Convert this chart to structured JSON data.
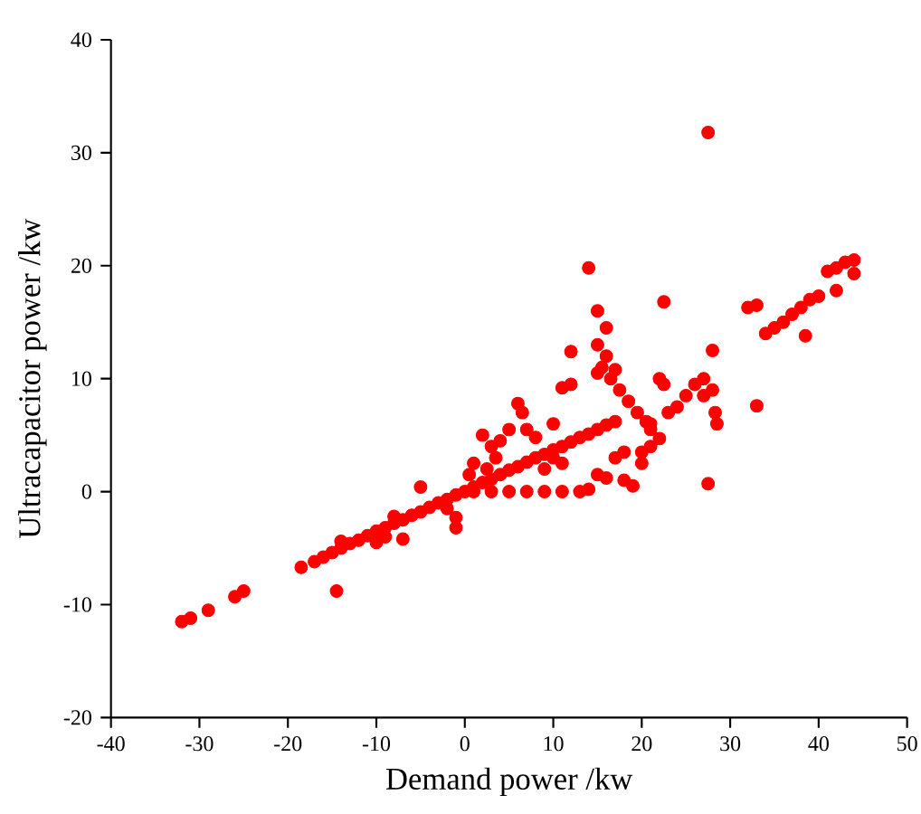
{
  "chart_data": {
    "type": "scatter",
    "xlabel": "Demand power /kw",
    "ylabel": "Ultracapacitor power /kw",
    "xlim": [
      -40,
      50
    ],
    "xticks": [
      -40,
      -30,
      -20,
      -10,
      0,
      10,
      20,
      30,
      40,
      50
    ],
    "ylim": [
      -20,
      40
    ],
    "yticks": [
      -20,
      -10,
      0,
      10,
      20,
      30,
      40
    ],
    "grid": false,
    "marker": "circle",
    "series": [
      {
        "color": "#ff0000",
        "x": [
          -32,
          -31,
          -29,
          -26,
          -25,
          -14.5,
          -18.5,
          -17,
          -16,
          -15,
          -14,
          -13,
          -12,
          -11,
          -10,
          -9,
          -8,
          -7,
          -6,
          -5,
          -4,
          -3,
          -2,
          -1,
          0,
          -14,
          -10,
          -9,
          -7,
          -5,
          -1,
          -1,
          -2,
          -8,
          1,
          2,
          3,
          4,
          5,
          6,
          7,
          8,
          9,
          10,
          11,
          12,
          13,
          14,
          15,
          16,
          17,
          1,
          3,
          5,
          7,
          9,
          11,
          13,
          14,
          1,
          2,
          3,
          4,
          5,
          6,
          6.5,
          7,
          8,
          3.5,
          2.5,
          0.5,
          9,
          10,
          11,
          11,
          12,
          10,
          12,
          14,
          15,
          15,
          16,
          16,
          17,
          15,
          15.5,
          16.5,
          17.5,
          18.5,
          19.5,
          20.5,
          21,
          15,
          16,
          17,
          18,
          18,
          19,
          20,
          20,
          21,
          22,
          21,
          22,
          22.5,
          22.5,
          23,
          24,
          25,
          26,
          27,
          27.5,
          27.5,
          28,
          28,
          28.3,
          28.5,
          27,
          33,
          32,
          33,
          34,
          35,
          36,
          37,
          38,
          39,
          40,
          38.5,
          41,
          42,
          43,
          44,
          42,
          44
        ],
        "values": [
          -11.5,
          -11.2,
          -10.5,
          -9.3,
          -8.8,
          -8.8,
          -6.7,
          -6.2,
          -5.8,
          -5.4,
          -5.0,
          -4.6,
          -4.3,
          -3.9,
          -3.5,
          -3.2,
          -2.8,
          -2.5,
          -2.1,
          -1.8,
          -1.4,
          -1.0,
          -0.7,
          -0.3,
          0,
          -4.4,
          -4.5,
          -4.0,
          -4.2,
          0.4,
          -2.3,
          -3.2,
          -1.5,
          -2.2,
          0.4,
          0.8,
          1.1,
          1.5,
          1.9,
          2.2,
          2.6,
          3.0,
          3.3,
          3.7,
          4.0,
          4.4,
          4.8,
          5.1,
          5.5,
          5.9,
          6.2,
          0,
          0,
          0,
          0,
          0,
          0,
          0,
          0.2,
          2.5,
          5,
          4,
          4.5,
          5.5,
          7.8,
          7,
          5.5,
          4.8,
          3,
          2,
          1.5,
          2,
          3,
          2.5,
          9.2,
          9.5,
          6,
          12.4,
          19.8,
          16,
          13,
          12,
          14.5,
          10.8,
          10.5,
          11,
          10,
          9,
          8,
          7,
          6.2,
          5.5,
          1.5,
          1.2,
          3,
          3.5,
          1,
          0.5,
          2.5,
          3.5,
          4,
          4.7,
          6,
          10,
          9.5,
          16.8,
          7,
          7.5,
          8.5,
          9.5,
          10,
          0.7,
          31.8,
          12.5,
          9,
          7,
          6,
          8.5,
          7.6,
          16.3,
          16.5,
          14,
          14.5,
          15,
          15.7,
          16.3,
          17,
          17.3,
          13.8,
          19.5,
          19.8,
          20.3,
          20.5,
          17.8,
          19.3
        ]
      }
    ]
  }
}
